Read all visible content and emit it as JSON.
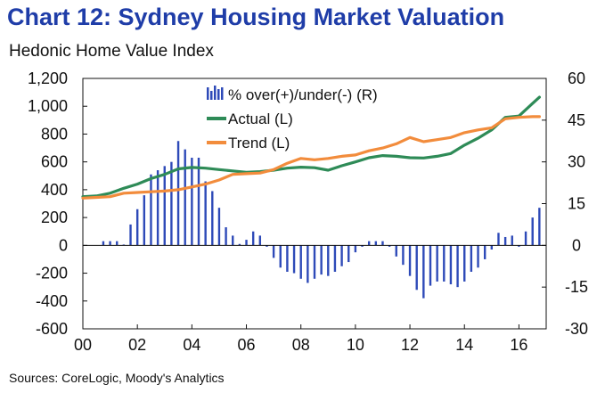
{
  "header": {
    "title": "Chart 12: Sydney Housing Market Valuation",
    "subtitle": "Hedonic Home Value Index"
  },
  "footer": {
    "source": "Sources: CoreLogic, Moody's Analytics"
  },
  "colors": {
    "title": "#1f3da8",
    "bars": "#2e4ab8",
    "actual": "#2e8b57",
    "trend": "#f28c3c",
    "axis": "#111111"
  },
  "chart_data": {
    "type": "bar+line",
    "title": "Chart 12: Sydney Housing Market Valuation",
    "subtitle": "Hedonic Home Value Index",
    "x_range": [
      2000,
      2016.75
    ],
    "x_ticks": [
      2000,
      2002,
      2004,
      2006,
      2008,
      2010,
      2012,
      2014,
      2016
    ],
    "x_tick_labels": [
      "00",
      "02",
      "04",
      "06",
      "08",
      "10",
      "12",
      "14",
      "16"
    ],
    "ylim_left": [
      -600,
      1200
    ],
    "y_left_ticks": [
      -600,
      -400,
      -200,
      0,
      200,
      400,
      600,
      800,
      1000,
      1200
    ],
    "y_left_tick_labels": [
      "-600",
      "-400",
      "-200",
      "0",
      "200",
      "400",
      "600",
      "800",
      "1,000",
      "1,200"
    ],
    "ylim_right": [
      -30,
      60
    ],
    "y_right_ticks": [
      -30,
      -15,
      0,
      15,
      30,
      45,
      60
    ],
    "y_right_tick_labels": [
      "-30",
      "-15",
      "0",
      "15",
      "30",
      "45",
      "60"
    ],
    "grid": false,
    "legend": {
      "position": "top-center",
      "entries": [
        "% over(+)/under(-) (R)",
        "Actual (L)",
        "Trend (L)"
      ]
    },
    "series": [
      {
        "name": "% over(+)/under(-) (R)",
        "type": "bar",
        "axis": "right",
        "color": "#2e4ab8",
        "points": [
          [
            2000.75,
            1.5
          ],
          [
            2001.0,
            1.5
          ],
          [
            2001.25,
            1.5
          ],
          [
            2001.5,
            0.3
          ],
          [
            2001.75,
            7.5
          ],
          [
            2002.0,
            13
          ],
          [
            2002.25,
            18
          ],
          [
            2002.5,
            25.5
          ],
          [
            2002.75,
            27
          ],
          [
            2003.0,
            28.5
          ],
          [
            2003.25,
            30
          ],
          [
            2003.5,
            37.5
          ],
          [
            2003.75,
            34.5
          ],
          [
            2004.0,
            31.5
          ],
          [
            2004.25,
            31.5
          ],
          [
            2004.5,
            23
          ],
          [
            2004.75,
            19.5
          ],
          [
            2005.0,
            13.5
          ],
          [
            2005.25,
            6.5
          ],
          [
            2005.5,
            3.5
          ],
          [
            2005.75,
            0.5
          ],
          [
            2006.0,
            2
          ],
          [
            2006.25,
            5
          ],
          [
            2006.5,
            3.5
          ],
          [
            2006.75,
            -0.5
          ],
          [
            2007.0,
            -4.5
          ],
          [
            2007.25,
            -8
          ],
          [
            2007.5,
            -9.5
          ],
          [
            2007.75,
            -10
          ],
          [
            2008.0,
            -12
          ],
          [
            2008.25,
            -13.5
          ],
          [
            2008.5,
            -12
          ],
          [
            2008.75,
            -10.5
          ],
          [
            2009.0,
            -11
          ],
          [
            2009.25,
            -9.5
          ],
          [
            2009.5,
            -7.5
          ],
          [
            2009.75,
            -6
          ],
          [
            2010.0,
            -2.5
          ],
          [
            2010.25,
            -0.5
          ],
          [
            2010.5,
            1.5
          ],
          [
            2010.75,
            1.5
          ],
          [
            2011.0,
            1.5
          ],
          [
            2011.25,
            -0.5
          ],
          [
            2011.5,
            -4
          ],
          [
            2011.75,
            -7
          ],
          [
            2012.0,
            -11
          ],
          [
            2012.25,
            -16
          ],
          [
            2012.5,
            -19
          ],
          [
            2012.75,
            -14.5
          ],
          [
            2013.0,
            -13
          ],
          [
            2013.25,
            -13
          ],
          [
            2013.5,
            -14
          ],
          [
            2013.75,
            -15
          ],
          [
            2014.0,
            -13
          ],
          [
            2014.25,
            -9.5
          ],
          [
            2014.5,
            -8
          ],
          [
            2014.75,
            -5
          ],
          [
            2015.0,
            -1.5
          ],
          [
            2015.25,
            4.5
          ],
          [
            2015.5,
            3
          ],
          [
            2015.75,
            3.5
          ],
          [
            2016.0,
            -0.5
          ],
          [
            2016.25,
            5
          ],
          [
            2016.5,
            10
          ],
          [
            2016.75,
            13.5
          ]
        ]
      },
      {
        "name": "Actual (L)",
        "type": "line",
        "axis": "left",
        "color": "#2e8b57",
        "points": [
          [
            2000.0,
            350
          ],
          [
            2000.5,
            355
          ],
          [
            2001.0,
            375
          ],
          [
            2001.5,
            410
          ],
          [
            2002.0,
            440
          ],
          [
            2002.5,
            480
          ],
          [
            2003.0,
            510
          ],
          [
            2003.5,
            550
          ],
          [
            2004.0,
            560
          ],
          [
            2004.5,
            555
          ],
          [
            2005.0,
            545
          ],
          [
            2005.5,
            535
          ],
          [
            2006.0,
            525
          ],
          [
            2006.5,
            530
          ],
          [
            2007.0,
            540
          ],
          [
            2007.5,
            555
          ],
          [
            2008.0,
            562
          ],
          [
            2008.5,
            558
          ],
          [
            2009.0,
            540
          ],
          [
            2009.5,
            572
          ],
          [
            2010.0,
            600
          ],
          [
            2010.5,
            630
          ],
          [
            2011.0,
            645
          ],
          [
            2011.5,
            640
          ],
          [
            2012.0,
            630
          ],
          [
            2012.5,
            628
          ],
          [
            2013.0,
            640
          ],
          [
            2013.5,
            660
          ],
          [
            2014.0,
            720
          ],
          [
            2014.5,
            770
          ],
          [
            2015.0,
            830
          ],
          [
            2015.5,
            920
          ],
          [
            2016.0,
            930
          ],
          [
            2016.5,
            1020
          ],
          [
            2016.75,
            1065
          ]
        ]
      },
      {
        "name": "Trend (L)",
        "type": "line",
        "axis": "left",
        "color": "#f28c3c",
        "points": [
          [
            2000.0,
            340
          ],
          [
            2000.5,
            345
          ],
          [
            2001.0,
            350
          ],
          [
            2001.5,
            375
          ],
          [
            2002.0,
            380
          ],
          [
            2002.5,
            385
          ],
          [
            2003.0,
            390
          ],
          [
            2003.5,
            400
          ],
          [
            2004.0,
            420
          ],
          [
            2004.5,
            440
          ],
          [
            2005.0,
            470
          ],
          [
            2005.5,
            510
          ],
          [
            2006.0,
            515
          ],
          [
            2006.5,
            520
          ],
          [
            2007.0,
            545
          ],
          [
            2007.5,
            590
          ],
          [
            2008.0,
            625
          ],
          [
            2008.5,
            615
          ],
          [
            2009.0,
            625
          ],
          [
            2009.5,
            640
          ],
          [
            2010.0,
            650
          ],
          [
            2010.5,
            680
          ],
          [
            2011.0,
            700
          ],
          [
            2011.5,
            730
          ],
          [
            2012.0,
            775
          ],
          [
            2012.5,
            745
          ],
          [
            2013.0,
            760
          ],
          [
            2013.5,
            775
          ],
          [
            2014.0,
            810
          ],
          [
            2014.5,
            830
          ],
          [
            2015.0,
            845
          ],
          [
            2015.5,
            910
          ],
          [
            2016.0,
            920
          ],
          [
            2016.5,
            925
          ],
          [
            2016.75,
            925
          ]
        ]
      }
    ]
  }
}
